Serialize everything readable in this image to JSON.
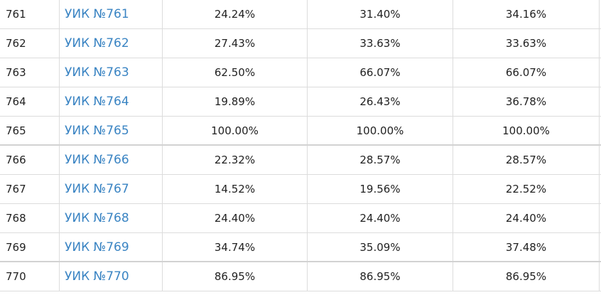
{
  "table": {
    "rows": [
      {
        "num": "761",
        "name": "УИК №761",
        "a": "24.24%",
        "b": "31.40%",
        "c": "34.16%"
      },
      {
        "num": "762",
        "name": "УИК №762",
        "a": "27.43%",
        "b": "33.63%",
        "c": "33.63%"
      },
      {
        "num": "763",
        "name": "УИК №763",
        "a": "62.50%",
        "b": "66.07%",
        "c": "66.07%"
      },
      {
        "num": "764",
        "name": "УИК №764",
        "a": "19.89%",
        "b": "26.43%",
        "c": "36.78%"
      },
      {
        "num": "765",
        "name": "УИК №765",
        "a": "100.00%",
        "b": "100.00%",
        "c": "100.00%"
      },
      {
        "num": "766",
        "name": "УИК №766",
        "a": "22.32%",
        "b": "28.57%",
        "c": "28.57%"
      },
      {
        "num": "767",
        "name": "УИК №767",
        "a": "14.52%",
        "b": "19.56%",
        "c": "22.52%"
      },
      {
        "num": "768",
        "name": "УИК №768",
        "a": "24.40%",
        "b": "24.40%",
        "c": "24.40%"
      },
      {
        "num": "769",
        "name": "УИК №769",
        "a": "34.74%",
        "b": "35.09%",
        "c": "37.48%"
      },
      {
        "num": "770",
        "name": "УИК №770",
        "a": "86.95%",
        "b": "86.95%",
        "c": "86.95%"
      }
    ]
  }
}
